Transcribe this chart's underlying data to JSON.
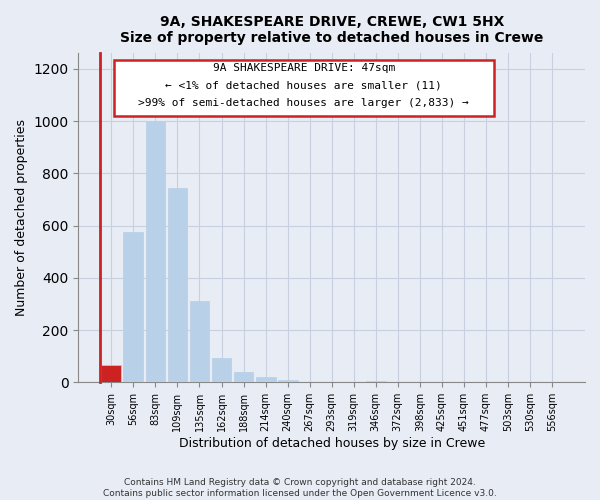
{
  "title": "9A, SHAKESPEARE DRIVE, CREWE, CW1 5HX",
  "subtitle": "Size of property relative to detached houses in Crewe",
  "xlabel": "Distribution of detached houses by size in Crewe",
  "ylabel": "Number of detached properties",
  "bar_labels": [
    "30sqm",
    "56sqm",
    "83sqm",
    "109sqm",
    "135sqm",
    "162sqm",
    "188sqm",
    "214sqm",
    "240sqm",
    "267sqm",
    "293sqm",
    "319sqm",
    "346sqm",
    "372sqm",
    "398sqm",
    "425sqm",
    "451sqm",
    "477sqm",
    "503sqm",
    "530sqm",
    "556sqm"
  ],
  "bar_values": [
    65,
    575,
    1000,
    745,
    310,
    95,
    40,
    20,
    10,
    0,
    0,
    0,
    5,
    0,
    0,
    0,
    0,
    0,
    0,
    0,
    0
  ],
  "highlight_bar_index": 0,
  "highlight_color": "#cc2222",
  "normal_color": "#b8d0e8",
  "ylim": [
    0,
    1260
  ],
  "yticks": [
    0,
    200,
    400,
    600,
    800,
    1000,
    1200
  ],
  "annotation_title": "9A SHAKESPEARE DRIVE: 47sqm",
  "annotation_line1": "← <1% of detached houses are smaller (11)",
  "annotation_line2": ">99% of semi-detached houses are larger (2,833) →",
  "footer_line1": "Contains HM Land Registry data © Crown copyright and database right 2024.",
  "footer_line2": "Contains public sector information licensed under the Open Government Licence v3.0.",
  "bg_color": "#e8ecf5",
  "plot_bg_color": "#e8ecf5",
  "grid_color": "#c8d0e0"
}
